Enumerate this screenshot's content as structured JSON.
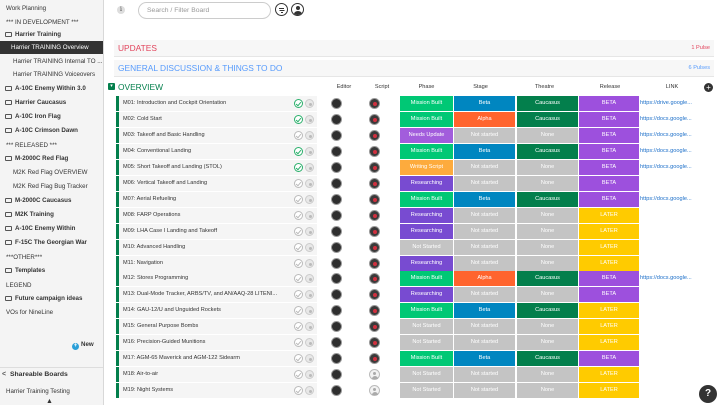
{
  "sidebar": {
    "items": [
      {
        "label": "Work Planning",
        "style": "plain"
      },
      {
        "label": "*** IN DEVELOPMENT ***",
        "style": "plain"
      },
      {
        "label": "Harrier Training",
        "style": "folder-bold"
      },
      {
        "label": "Harrier TRAINING Overview",
        "style": "selected"
      },
      {
        "label": "Harrier TRAINING Internal TO ...",
        "style": "indent"
      },
      {
        "label": "Harrier TRAINING Voiceovers",
        "style": "indent"
      },
      {
        "label": "A-10C Enemy Within 3.0",
        "style": "folder-bold"
      },
      {
        "label": "Harrier Caucasus",
        "style": "folder-bold"
      },
      {
        "label": "A-10C Iron Flag",
        "style": "folder-bold"
      },
      {
        "label": "A-10C Crimson Dawn",
        "style": "folder-bold"
      },
      {
        "label": "*** RELEASED ***",
        "style": "plain"
      },
      {
        "label": "M-2000C Red Flag",
        "style": "folder-bold"
      },
      {
        "label": "M2K Red Flag OVERVIEW",
        "style": "indent"
      },
      {
        "label": "M2K Red Flag Bug Tracker",
        "style": "indent"
      },
      {
        "label": "M-2000C Caucasus",
        "style": "folder-bold"
      },
      {
        "label": "M2K Training",
        "style": "folder-bold"
      },
      {
        "label": "A-10C Enemy Within",
        "style": "folder-bold"
      },
      {
        "label": "F-15C The Georgian War",
        "style": "folder-bold"
      },
      {
        "label": "***OTHER***",
        "style": "plain"
      },
      {
        "label": "Templates",
        "style": "folder-bold"
      },
      {
        "label": "LEGEND",
        "style": "plain"
      },
      {
        "label": "Future campaign ideas",
        "style": "folder-bold"
      },
      {
        "label": "VOs for NineLine",
        "style": "plain"
      }
    ],
    "new_label": "New",
    "shareable_label": "Shareable Boards",
    "last_item": "Harrier Training Testing"
  },
  "topbar": {
    "search_placeholder": "Search / Filter Board"
  },
  "groups": {
    "updates": {
      "title": "UPDATES",
      "count": "1 Pulse"
    },
    "general": {
      "title": "GENERAL DISCUSSION & THINGS TO DO",
      "count": "6 Pulses"
    },
    "overview": {
      "title": "OVERVIEW"
    }
  },
  "columns": {
    "editor": "Editor",
    "script": "Script",
    "phase": "Phase",
    "stage": "Stage",
    "theatre": "Theatre",
    "release": "Release",
    "link": "LINK"
  },
  "colors": {
    "green": "#037f4c",
    "mission_built": "#00c875",
    "needs_update": "#a25ddc",
    "writing_script": "#fdab3d",
    "researching": "#784bd1",
    "not_started": "#c4c4c4",
    "beta_stage": "#0086c0",
    "alpha": "#ff642e",
    "caucasus": "#037f4c",
    "none": "#c4c4c4",
    "beta_release": "#9d50dd",
    "later": "#ffcb00"
  },
  "rows": [
    {
      "name": "M01: Introduction and Cockpit Orientation",
      "done": true,
      "editor": "dark",
      "script": "red",
      "phase": "Mission Built",
      "stage": "Beta",
      "theatre": "Caucasus",
      "release": "BETA",
      "link": "https://drive.google..."
    },
    {
      "name": "M02: Cold Start",
      "done": true,
      "editor": "dark",
      "script": "red",
      "phase": "Mission Built",
      "stage": "Alpha",
      "theatre": "Caucasus",
      "release": "BETA",
      "link": "https://docs.google..."
    },
    {
      "name": "M03: Takeoff and Basic Handling",
      "done": false,
      "editor": "dark",
      "script": "red",
      "phase": "Needs Update",
      "stage": "Not started",
      "theatre": "None",
      "release": "BETA",
      "link": "https://docs.google..."
    },
    {
      "name": "M04: Conventional Landing",
      "done": true,
      "editor": "dark",
      "script": "red",
      "phase": "Mission Built",
      "stage": "Beta",
      "theatre": "Caucasus",
      "release": "BETA",
      "link": "https://docs.google..."
    },
    {
      "name": "M05: Short Takeoff and Landing (STOL)",
      "done": true,
      "editor": "dark",
      "script": "red",
      "phase": "Writing Script",
      "stage": "Not started",
      "theatre": "None",
      "release": "BETA",
      "link": "https://docs.google..."
    },
    {
      "name": "M06: Vertical Takeoff and Landing",
      "done": false,
      "editor": "dark",
      "script": "red",
      "phase": "Researching",
      "stage": "Not started",
      "theatre": "None",
      "release": "BETA",
      "link": ""
    },
    {
      "name": "M07: Aerial Refueling",
      "done": false,
      "editor": "dark",
      "script": "red",
      "phase": "Mission Built",
      "stage": "Beta",
      "theatre": "Caucasus",
      "release": "BETA",
      "link": "https://docs.google..."
    },
    {
      "name": "M08: FARP Operations",
      "done": false,
      "editor": "dark",
      "script": "red",
      "phase": "Researching",
      "stage": "Not started",
      "theatre": "None",
      "release": "LATER",
      "link": ""
    },
    {
      "name": "M09: LHA Case I Landing and Takeoff",
      "done": false,
      "editor": "dark",
      "script": "red",
      "phase": "Researching",
      "stage": "Not started",
      "theatre": "None",
      "release": "LATER",
      "link": ""
    },
    {
      "name": "M10: Advanced Handling",
      "done": false,
      "editor": "dark",
      "script": "red",
      "phase": "Not Started",
      "stage": "Not started",
      "theatre": "None",
      "release": "LATER",
      "link": ""
    },
    {
      "name": "M11: Navigation",
      "done": false,
      "editor": "dark",
      "script": "red",
      "phase": "Researching",
      "stage": "Not started",
      "theatre": "None",
      "release": "LATER",
      "link": ""
    },
    {
      "name": "M12: Stores Programming",
      "done": false,
      "editor": "dark",
      "script": "red",
      "phase": "Mission Built",
      "stage": "Alpha",
      "theatre": "Caucasus",
      "release": "BETA",
      "link": "https://docs.google..."
    },
    {
      "name": "M13: Dual-Mode Tracker, ARBS/TV, and AN/AAQ-28 LITENI...",
      "done": false,
      "editor": "dark",
      "script": "red",
      "phase": "Researching",
      "stage": "Not started",
      "theatre": "None",
      "release": "BETA",
      "link": ""
    },
    {
      "name": "M14: GAU-12/U and Unguided Rockets",
      "done": false,
      "editor": "dark",
      "script": "red",
      "phase": "Mission Built",
      "stage": "Beta",
      "theatre": "Caucasus",
      "release": "LATER",
      "link": ""
    },
    {
      "name": "M15: General Purpose Bombs",
      "done": false,
      "editor": "dark",
      "script": "red",
      "phase": "Not Started",
      "stage": "Not started",
      "theatre": "None",
      "release": "LATER",
      "link": ""
    },
    {
      "name": "M16: Precision-Guided Munitions",
      "done": false,
      "editor": "dark",
      "script": "red",
      "phase": "Not Started",
      "stage": "Not started",
      "theatre": "None",
      "release": "LATER",
      "link": ""
    },
    {
      "name": "M17: AGM-65 Maverick and AGM-122 Sidearm",
      "done": false,
      "editor": "dark",
      "script": "red",
      "phase": "Mission Built",
      "stage": "Beta",
      "theatre": "Caucasus",
      "release": "BETA",
      "link": ""
    },
    {
      "name": "M18: Air-to-air",
      "done": false,
      "editor": "dark",
      "script": "empty",
      "phase": "Not Started",
      "stage": "Not started",
      "theatre": "None",
      "release": "LATER",
      "link": ""
    },
    {
      "name": "M19: Night Systems",
      "done": false,
      "editor": "dark",
      "script": "empty",
      "phase": "Not Started",
      "stage": "Not started",
      "theatre": "None",
      "release": "LATER",
      "link": ""
    }
  ]
}
